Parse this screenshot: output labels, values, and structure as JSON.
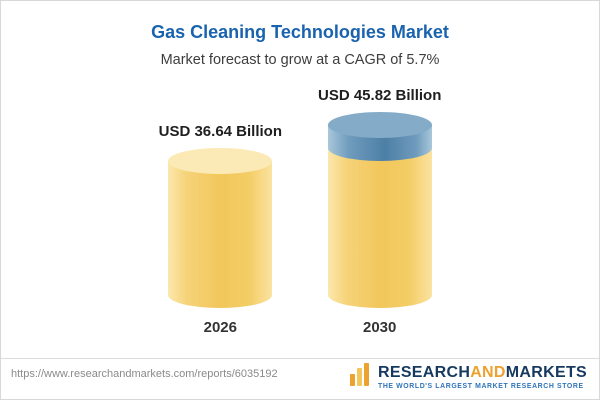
{
  "header": {
    "title": "Gas Cleaning Technologies Market",
    "subtitle": "Market forecast to grow at a CAGR of 5.7%"
  },
  "chart_data": {
    "type": "bar",
    "categories": [
      "2026",
      "2030"
    ],
    "values": [
      36.64,
      45.82
    ],
    "value_labels": [
      "USD 36.64 Billion",
      "USD 45.82 Billion"
    ],
    "unit": "USD Billion",
    "title": "Gas Cleaning Technologies Market",
    "subtitle": "Market forecast to grow at a CAGR of 5.7%",
    "cagr_percent": 5.7,
    "legend_position": "none",
    "grid": false,
    "colors": {
      "base_bar": "#f2c75c",
      "increment_bar": "#4d7fa6",
      "title": "#1a63ae"
    },
    "notes": "2030 cylinder shows growth increment above 2026 level as a blue cap"
  },
  "footer": {
    "url": "https://www.researchandmarkets.com/reports/6035192",
    "logo": {
      "word_research": "RESEARCH",
      "word_and": "AND",
      "word_markets": "MARKETS",
      "tagline": "THE WORLD'S LARGEST MARKET RESEARCH STORE"
    }
  }
}
